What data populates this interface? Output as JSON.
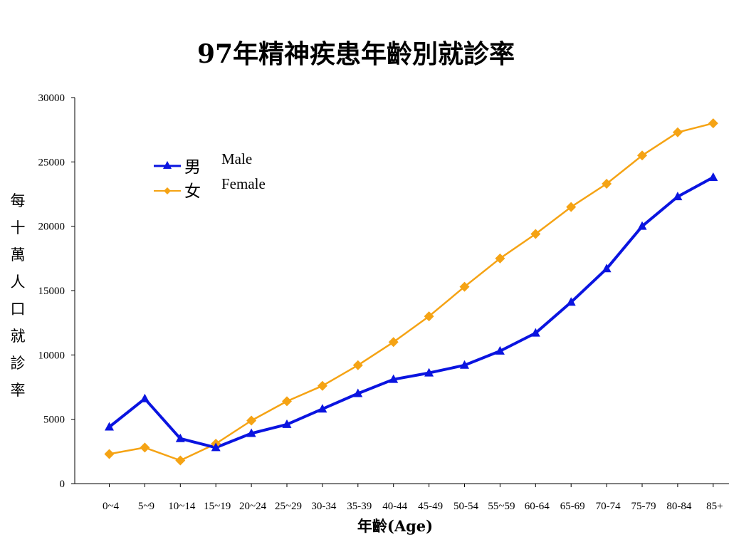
{
  "chart_data": {
    "type": "line",
    "title": "97年精神疾患年齡別就診率",
    "xlabel": "年齡(Age)",
    "ylabel": "每十萬人口就診率",
    "ylim": [
      0,
      30000
    ],
    "yticks": [
      "0",
      "5000",
      "10000",
      "15000",
      "20000",
      "25000",
      "30000"
    ],
    "categories": [
      "0~4",
      "5~9",
      "10~14",
      "15~19",
      "20~24",
      "25~29",
      "30-34",
      "35-39",
      "40-44",
      "45-49",
      "50-54",
      "55~59",
      "60-64",
      "65-69",
      "70-74",
      "75-79",
      "80-84",
      "85+"
    ],
    "grid": false,
    "legend_position": "top-left",
    "series": [
      {
        "name": "男",
        "name_en": "Male",
        "color": "#0a14e0",
        "marker": "triangle",
        "values": [
          4400,
          6600,
          3500,
          2800,
          3900,
          4600,
          5800,
          7000,
          8100,
          8600,
          9200,
          10300,
          11700,
          14100,
          16700,
          20000,
          22300,
          23800
        ]
      },
      {
        "name": "女",
        "name_en": "Female",
        "color": "#f5a314",
        "marker": "diamond",
        "values": [
          2300,
          2800,
          1800,
          3100,
          4900,
          6400,
          7600,
          9200,
          11000,
          13000,
          15300,
          17500,
          19400,
          21500,
          23300,
          25500,
          27300,
          28000
        ]
      }
    ]
  }
}
